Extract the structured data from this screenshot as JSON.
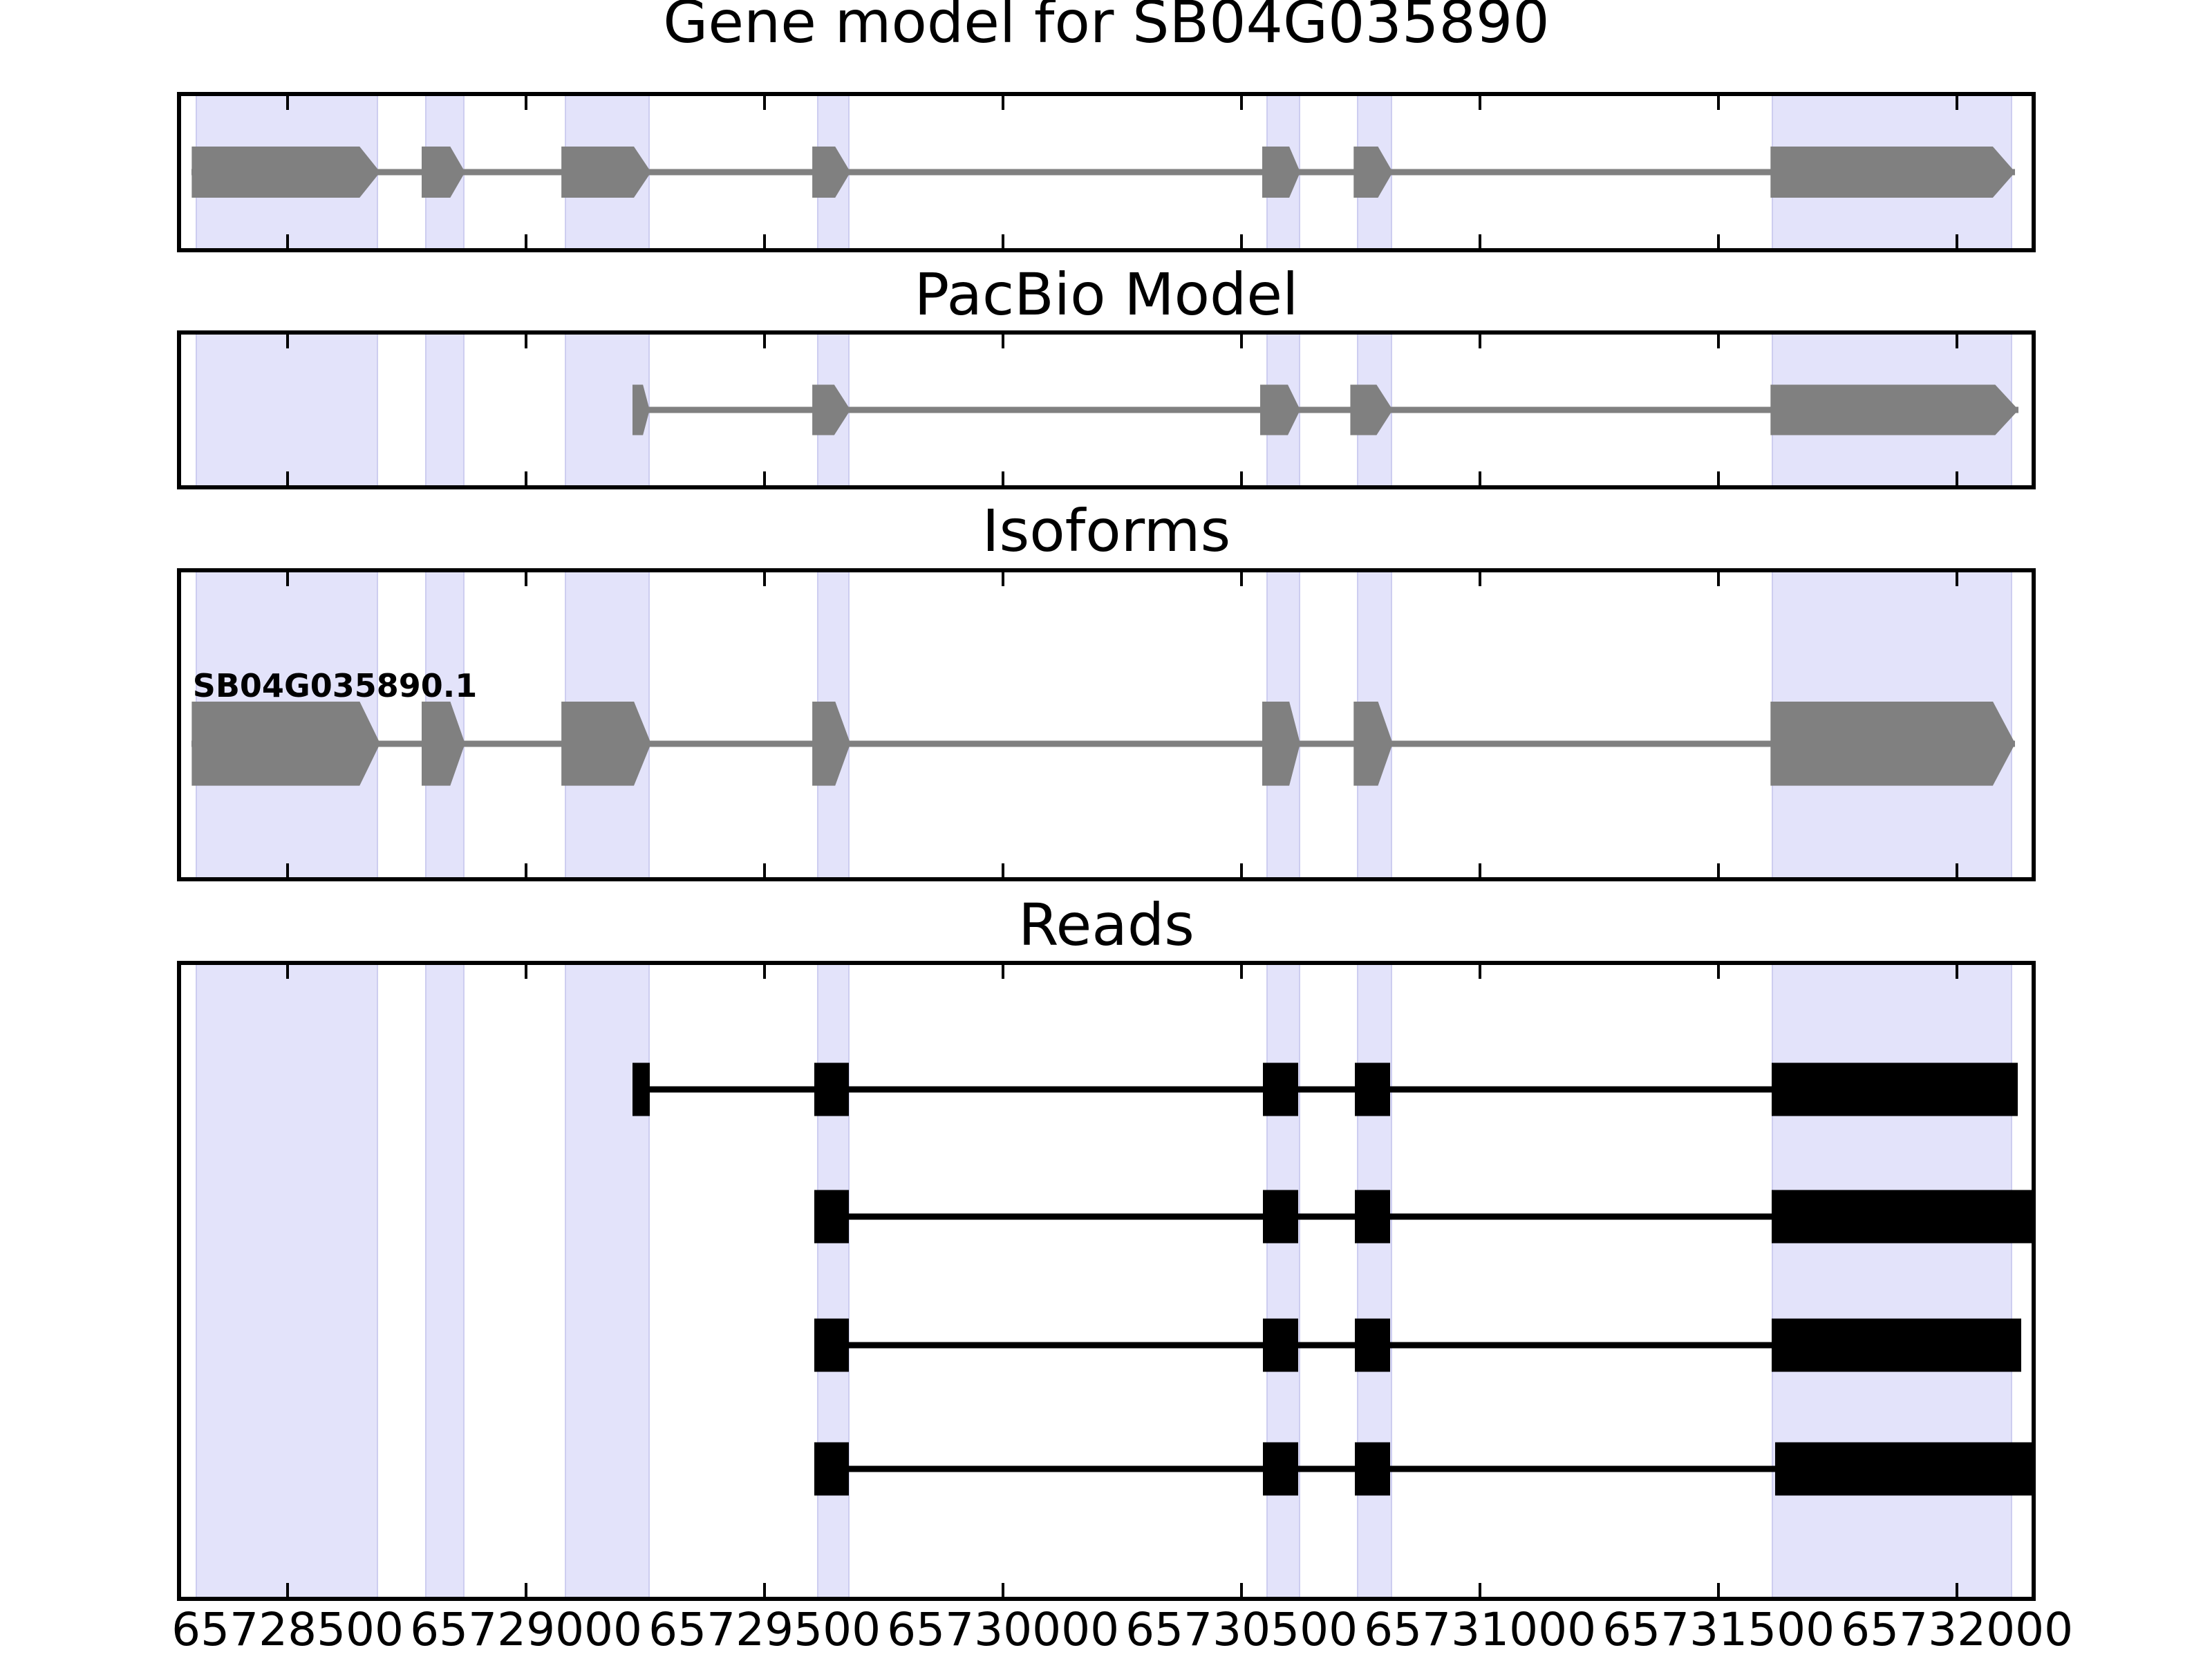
{
  "colors": {
    "highlight_band": "#e3e3fa",
    "highlight_band_edge": "#cdcdf0",
    "model_gray": "#808080",
    "read_black": "#000000",
    "frame": "#000000",
    "background": "#ffffff"
  },
  "chart_data": {
    "type": "genomic-track-plot",
    "axis": {
      "xlim": [
        65728268,
        65732165
      ],
      "tick_values": [
        65728500,
        65729000,
        65729500,
        65730000,
        65730500,
        65731000,
        65731500,
        65732000
      ],
      "tick_labels": [
        "65728500",
        "65729000",
        "65729500",
        "65730000",
        "65730500",
        "65731000",
        "65731500",
        "65732000"
      ]
    },
    "highlight_regions": [
      [
        65728307,
        65728684
      ],
      [
        65728788,
        65728865
      ],
      [
        65729081,
        65729253
      ],
      [
        65729610,
        65729672
      ],
      [
        65730552,
        65730617
      ],
      [
        65730742,
        65730810
      ],
      [
        65731612,
        65732110
      ]
    ],
    "tracks": [
      {
        "title": "Gene model for SB04G035890",
        "color": "#808080",
        "rows": [
          {
            "label": "",
            "features": [
              {
                "type": "arrow",
                "start": 65728299,
                "end": 65728694,
                "body_end": 65728651
              },
              {
                "type": "arrow",
                "start": 65728781,
                "end": 65728872,
                "body_end": 65728841
              },
              {
                "type": "arrow",
                "start": 65729074,
                "end": 65729262,
                "body_end": 65729226
              },
              {
                "type": "arrow",
                "start": 65729600,
                "end": 65729680,
                "body_end": 65729648
              },
              {
                "type": "arrow",
                "start": 65730543,
                "end": 65730623,
                "body_end": 65730600
              },
              {
                "type": "arrow",
                "start": 65730735,
                "end": 65730817,
                "body_end": 65730786
              },
              {
                "type": "arrow",
                "start": 65731609,
                "end": 65732122,
                "body_end": 65732075
              }
            ]
          }
        ]
      },
      {
        "title": "PacBio Model",
        "color": "#808080",
        "rows": [
          {
            "label": "",
            "features": [
              {
                "type": "arrow",
                "start": 65729223,
                "end": 65729259,
                "body_end": 65729245
              },
              {
                "type": "arrow",
                "start": 65729600,
                "end": 65729680,
                "body_end": 65729646
              },
              {
                "type": "arrow",
                "start": 65730539,
                "end": 65730623,
                "body_end": 65730597
              },
              {
                "type": "arrow",
                "start": 65730728,
                "end": 65730817,
                "body_end": 65730783
              },
              {
                "type": "arrow",
                "start": 65731609,
                "end": 65732129,
                "body_end": 65732080
              }
            ]
          }
        ]
      },
      {
        "title": "Isoforms",
        "color": "#808080",
        "rows": [
          {
            "label": "SB04G035890.1",
            "features": [
              {
                "type": "arrow",
                "start": 65728299,
                "end": 65728694,
                "body_end": 65728651
              },
              {
                "type": "arrow",
                "start": 65728781,
                "end": 65728872,
                "body_end": 65728841
              },
              {
                "type": "arrow",
                "start": 65729074,
                "end": 65729262,
                "body_end": 65729226
              },
              {
                "type": "arrow",
                "start": 65729600,
                "end": 65729680,
                "body_end": 65729648
              },
              {
                "type": "arrow",
                "start": 65730543,
                "end": 65730623,
                "body_end": 65730600
              },
              {
                "type": "arrow",
                "start": 65730735,
                "end": 65730817,
                "body_end": 65730786
              },
              {
                "type": "arrow",
                "start": 65731609,
                "end": 65732122,
                "body_end": 65732075
              }
            ]
          }
        ]
      },
      {
        "title": "Reads",
        "color": "#000000",
        "rows": [
          {
            "label": "",
            "features": [
              {
                "type": "box",
                "start": 65729223,
                "end": 65729259
              },
              {
                "type": "box",
                "start": 65729604,
                "end": 65729677
              },
              {
                "type": "box",
                "start": 65730545,
                "end": 65730618
              },
              {
                "type": "box",
                "start": 65730738,
                "end": 65730812
              },
              {
                "type": "box",
                "start": 65731612,
                "end": 65732128
              }
            ]
          },
          {
            "label": "",
            "features": [
              {
                "type": "box",
                "start": 65729604,
                "end": 65729677
              },
              {
                "type": "box",
                "start": 65730545,
                "end": 65730618
              },
              {
                "type": "box",
                "start": 65730738,
                "end": 65730812
              },
              {
                "type": "box",
                "start": 65731612,
                "end": 65732165
              }
            ]
          },
          {
            "label": "",
            "features": [
              {
                "type": "box",
                "start": 65729604,
                "end": 65729677
              },
              {
                "type": "box",
                "start": 65730545,
                "end": 65730618
              },
              {
                "type": "box",
                "start": 65730738,
                "end": 65730812
              },
              {
                "type": "box",
                "start": 65731612,
                "end": 65732134
              }
            ]
          },
          {
            "label": "",
            "features": [
              {
                "type": "box",
                "start": 65729604,
                "end": 65729677
              },
              {
                "type": "box",
                "start": 65730545,
                "end": 65730618
              },
              {
                "type": "box",
                "start": 65730738,
                "end": 65730812
              },
              {
                "type": "box",
                "start": 65731618,
                "end": 65732165
              }
            ]
          }
        ]
      }
    ]
  }
}
